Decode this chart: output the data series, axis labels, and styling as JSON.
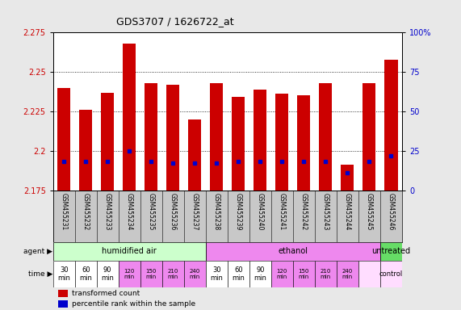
{
  "title": "GDS3707 / 1626722_at",
  "samples": [
    "GSM455231",
    "GSM455232",
    "GSM455233",
    "GSM455234",
    "GSM455235",
    "GSM455236",
    "GSM455237",
    "GSM455238",
    "GSM455239",
    "GSM455240",
    "GSM455241",
    "GSM455242",
    "GSM455243",
    "GSM455244",
    "GSM455245",
    "GSM455246"
  ],
  "bar_tops": [
    2.24,
    2.226,
    2.237,
    2.268,
    2.243,
    2.242,
    2.22,
    2.243,
    2.234,
    2.239,
    2.236,
    2.235,
    2.243,
    2.191,
    2.243,
    2.258
  ],
  "blue_positions": [
    2.193,
    2.193,
    2.193,
    2.2,
    2.193,
    2.192,
    2.192,
    2.192,
    2.193,
    2.193,
    2.193,
    2.193,
    2.193,
    2.186,
    2.193,
    2.197
  ],
  "bar_base": 2.175,
  "ylim_left": [
    2.175,
    2.275
  ],
  "ylim_right": [
    0,
    100
  ],
  "yticks_left": [
    2.175,
    2.2,
    2.225,
    2.25,
    2.275
  ],
  "ytick_labels_left": [
    "2.175",
    "2.2",
    "2.225",
    "2.25",
    "2.275"
  ],
  "yticks_right": [
    0,
    25,
    50,
    75,
    100
  ],
  "ytick_labels_right": [
    "0",
    "25",
    "50",
    "75",
    "100%"
  ],
  "bar_color": "#cc0000",
  "blue_color": "#0000cc",
  "bar_width": 0.6,
  "agent_groups": [
    {
      "label": "humidified air",
      "start": 0,
      "end": 7,
      "color": "#ccffcc"
    },
    {
      "label": "ethanol",
      "start": 7,
      "end": 15,
      "color": "#ee88ee"
    },
    {
      "label": "untreated",
      "start": 15,
      "end": 16,
      "color": "#66dd66"
    }
  ],
  "time_labels": [
    "30\nmin",
    "60\nmin",
    "90\nmin",
    "120\nmin",
    "150\nmin",
    "210\nmin",
    "240\nmin",
    "30\nmin",
    "60\nmin",
    "90\nmin",
    "120\nmin",
    "150\nmin",
    "210\nmin",
    "240\nmin",
    "",
    ""
  ],
  "time_colors": [
    "#ffffff",
    "#ffffff",
    "#ffffff",
    "#ee88ee",
    "#ee88ee",
    "#ee88ee",
    "#ee88ee",
    "#ffffff",
    "#ffffff",
    "#ffffff",
    "#ee88ee",
    "#ee88ee",
    "#ee88ee",
    "#ee88ee",
    "#ffddff",
    "#ffddff"
  ],
  "time_small": [
    false,
    false,
    false,
    true,
    true,
    true,
    true,
    false,
    false,
    false,
    true,
    true,
    true,
    true,
    false,
    false
  ],
  "legend_items": [
    {
      "color": "#cc0000",
      "label": "transformed count"
    },
    {
      "color": "#0000cc",
      "label": "percentile rank within the sample"
    }
  ],
  "bg_color": "#e8e8e8",
  "plot_bg": "#ffffff",
  "xlabels_bg": "#c8c8c8",
  "ylabel_left_color": "#cc0000",
  "ylabel_right_color": "#0000cc"
}
